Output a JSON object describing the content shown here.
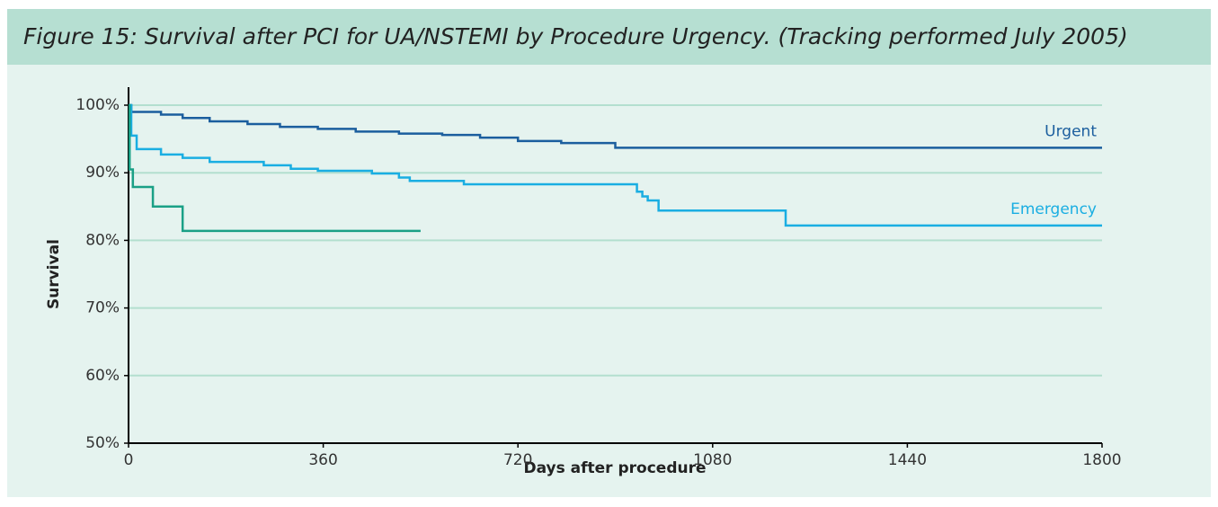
{
  "chart_data": {
    "type": "step",
    "title": "Figure 15: Survival after PCI for UA/NSTEMI by Procedure Urgency. (Tracking performed July 2005)",
    "xlabel": "Days after procedure",
    "ylabel": "Survival",
    "xlim": [
      0,
      1800
    ],
    "xticks": [
      0,
      360,
      720,
      1080,
      1440,
      1800
    ],
    "ylim": [
      50,
      100
    ],
    "yticks": [
      {
        "value": 50,
        "label": "50%"
      },
      {
        "value": 60,
        "label": "60%"
      },
      {
        "value": 70,
        "label": "70%"
      },
      {
        "value": 80,
        "label": "80%"
      },
      {
        "value": 90,
        "label": "90%"
      },
      {
        "value": 100,
        "label": "100%"
      }
    ],
    "grid": true,
    "series": [
      {
        "name": "Urgent",
        "color": "#1b5e9e",
        "x": [
          0,
          5,
          60,
          100,
          150,
          220,
          280,
          350,
          420,
          500,
          580,
          650,
          720,
          800,
          900,
          1800
        ],
        "values": [
          100,
          99,
          98.6,
          98.1,
          97.6,
          97.2,
          96.8,
          96.5,
          96.1,
          95.8,
          95.6,
          95.2,
          94.7,
          94.4,
          93.7,
          93.7
        ]
      },
      {
        "name": "Emergency",
        "color": "#1aaee2",
        "x": [
          0,
          5,
          15,
          60,
          100,
          150,
          250,
          300,
          350,
          450,
          500,
          520,
          620,
          940,
          950,
          960,
          980,
          1215,
          1800
        ],
        "values": [
          100,
          95.5,
          93.5,
          92.7,
          92.2,
          91.6,
          91.1,
          90.6,
          90.3,
          89.9,
          89.3,
          88.8,
          88.3,
          87.2,
          86.5,
          85.9,
          84.4,
          82.2,
          82.2
        ]
      },
      {
        "color": "#1aa086",
        "x": [
          0,
          2,
          8,
          45,
          100,
          540
        ],
        "values": [
          100,
          90.5,
          87.9,
          85,
          81.4,
          81.4
        ]
      }
    ]
  }
}
